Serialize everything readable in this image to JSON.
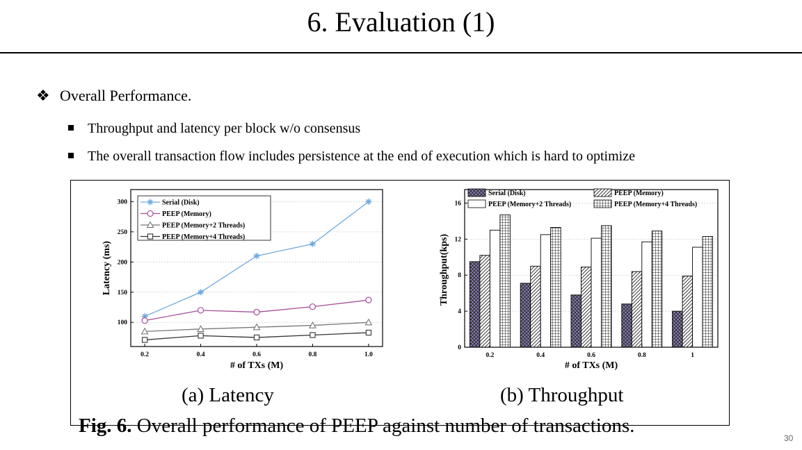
{
  "slide": {
    "title": "6. Evaluation (1)",
    "heading": "Overall Performance.",
    "heading_glyph": "❖",
    "bullets": [
      "Throughput and latency per block w/o consensus",
      "The overall transaction flow includes persistence at the end of execution which is hard to optimize"
    ],
    "page_number": "30"
  },
  "figure": {
    "caption_label": "Fig. 6.",
    "caption_text": " Overall performance of PEEP against number of transactions.",
    "sub_a": "(a) Latency",
    "sub_b": "(b) Throughput"
  },
  "chart_data": [
    {
      "type": "line",
      "xlabel": "# of TXs (M)",
      "ylabel": "Latency (ms)",
      "x": [
        0.2,
        0.4,
        0.6,
        0.8,
        1.0
      ],
      "x_tick_labels": [
        "0.2",
        "0.4",
        "0.6",
        "0.8",
        "1.0"
      ],
      "xlim": [
        0.15,
        1.05
      ],
      "ylim": [
        60,
        320
      ],
      "yticks": [
        100,
        150,
        200,
        250,
        300
      ],
      "grid": true,
      "legend_position": "top-left",
      "series": [
        {
          "name": "Serial (Disk)",
          "marker": "asterisk",
          "color": "#6fa8dc",
          "values": [
            110,
            150,
            210,
            230,
            300
          ]
        },
        {
          "name": "PEEP (Memory)",
          "marker": "circle",
          "color": "#a64d9a",
          "values": [
            103,
            120,
            117,
            126,
            137
          ]
        },
        {
          "name": "PEEP (Memory+2 Threads)",
          "marker": "triangle",
          "color": "#777777",
          "values": [
            85,
            89,
            92,
            95,
            100
          ]
        },
        {
          "name": "PEEP (Memory+4 Threads)",
          "marker": "square",
          "color": "#333333",
          "values": [
            71,
            78,
            75,
            79,
            83
          ]
        }
      ]
    },
    {
      "type": "bar",
      "xlabel": "# of TXs (M)",
      "ylabel": "Throughput(kps)",
      "categories": [
        "0.2",
        "0.4",
        "0.6",
        "0.8",
        "1"
      ],
      "ylim": [
        0,
        17.5
      ],
      "yticks": [
        0,
        4,
        8,
        12,
        16
      ],
      "grid": true,
      "legend_position": "top",
      "series": [
        {
          "name": "Serial (Disk)",
          "pattern": "crosshatch",
          "color": "#8b7fb3",
          "values": [
            9.5,
            7.1,
            5.8,
            4.8,
            4.0
          ]
        },
        {
          "name": "PEEP (Memory)",
          "pattern": "diagonal",
          "color": "#ffffff",
          "values": [
            10.2,
            9.0,
            8.9,
            8.4,
            7.9
          ]
        },
        {
          "name": "PEEP (Memory+2 Threads)",
          "pattern": "solid",
          "color": "#ffffff",
          "values": [
            13.0,
            12.5,
            12.1,
            11.7,
            11.1
          ]
        },
        {
          "name": "PEEP (Memory+4 Threads)",
          "pattern": "grid",
          "color": "#ffffff",
          "values": [
            14.7,
            13.3,
            13.5,
            12.9,
            12.3
          ]
        }
      ]
    }
  ]
}
